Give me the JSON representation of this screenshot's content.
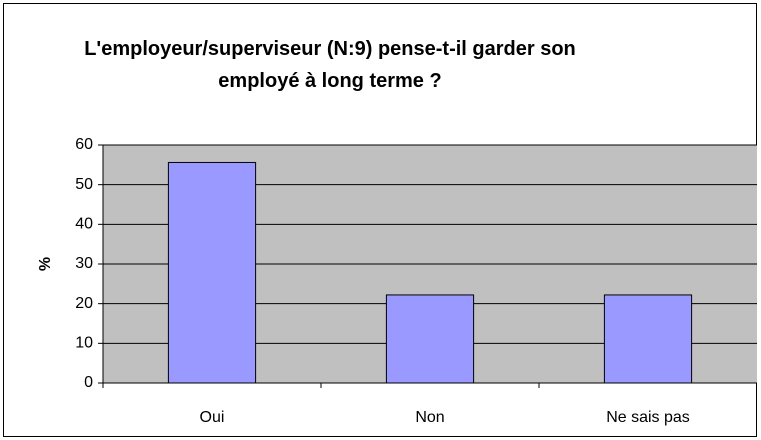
{
  "chart_data": {
    "type": "bar",
    "title": "L'employeur/superviseur (N:9) pense-t-il garder son employé à long terme ?",
    "ylabel": "%",
    "categories": [
      "Oui",
      "Non",
      "Ne sais pas"
    ],
    "values": [
      55.6,
      22.2,
      22.2
    ],
    "color": "#9999ff",
    "ylim": [
      0,
      60
    ],
    "yticks": [
      0,
      10,
      20,
      30,
      40,
      50,
      60
    ],
    "grid": true
  }
}
